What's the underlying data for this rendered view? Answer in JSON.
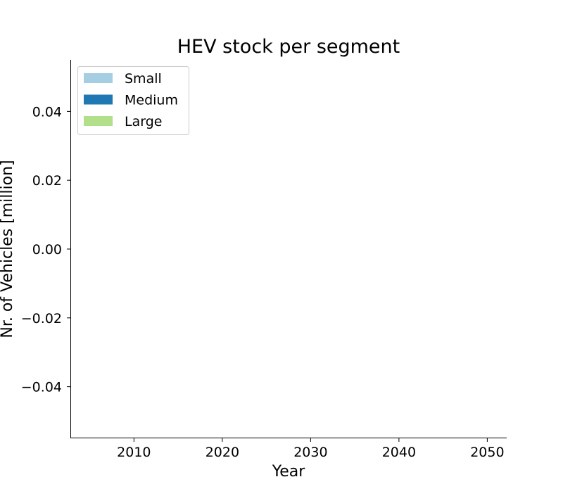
{
  "chart_data": {
    "type": "area",
    "title": "HEV stock per segment",
    "xlabel": "Year",
    "ylabel": "Nr. of Vehicles [million]",
    "x_ticks": [
      2010,
      2020,
      2030,
      2040,
      2050
    ],
    "y_ticks": [
      0.04,
      0.02,
      0.0,
      -0.02,
      -0.04
    ],
    "y_tick_labels": [
      "0.04",
      "0.02",
      "0.00",
      "−0.02",
      "−0.04"
    ],
    "xlim": [
      2002.8,
      2052.2
    ],
    "ylim": [
      -0.055,
      0.055
    ],
    "grid": false,
    "legend_position": "top-left",
    "series": [
      {
        "name": "Small",
        "color": "#a6cee3",
        "values": []
      },
      {
        "name": "Medium",
        "color": "#1f78b4",
        "values": []
      },
      {
        "name": "Large",
        "color": "#b2df8a",
        "values": []
      }
    ]
  }
}
